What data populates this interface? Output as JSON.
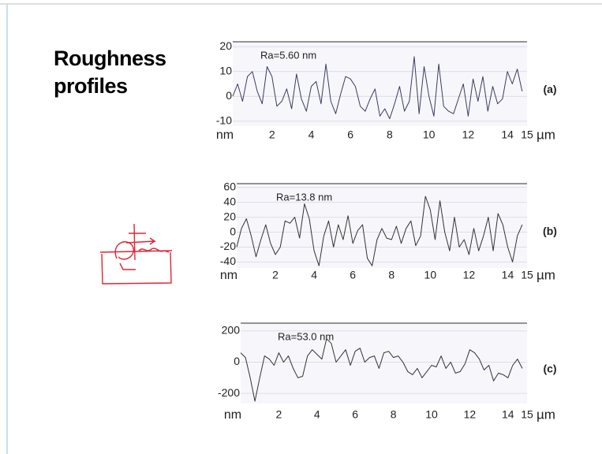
{
  "title": "Roughness profiles",
  "chart_data": [
    {
      "type": "line",
      "annotation": "Ra=5.60 nm",
      "panel_label": "(a)",
      "xlabel": "µm",
      "ylabel": "nm",
      "xlim": [
        0,
        15
      ],
      "xticks": [
        2,
        4,
        6,
        8,
        10,
        12,
        14,
        15
      ],
      "ylim": [
        -12,
        22
      ],
      "yticks": [
        -10,
        0,
        10,
        20
      ],
      "grid": true,
      "series": [
        {
          "color": "#3b3b63",
          "x": [
            0,
            0.25,
            0.5,
            0.75,
            1,
            1.25,
            1.5,
            1.75,
            2,
            2.25,
            2.5,
            2.75,
            3,
            3.25,
            3.5,
            3.75,
            4,
            4.25,
            4.5,
            4.75,
            5,
            5.25,
            5.5,
            5.75,
            6,
            6.25,
            6.5,
            6.75,
            7,
            7.25,
            7.5,
            7.75,
            8,
            8.25,
            8.5,
            8.75,
            9,
            9.25,
            9.5,
            9.75,
            10,
            10.25,
            10.5,
            10.75,
            11,
            11.25,
            11.5,
            11.75,
            12,
            12.25,
            12.5,
            12.75,
            13,
            13.25,
            13.5,
            13.75,
            14,
            14.25,
            14.5,
            14.75
          ],
          "values": [
            0,
            5,
            -2,
            8,
            10,
            2,
            -3,
            12,
            8,
            -4,
            -2,
            3,
            -5,
            9,
            -1,
            -6,
            4,
            6,
            -3,
            13,
            -2,
            -7,
            1,
            8,
            7,
            4,
            -4,
            -6,
            -1,
            3,
            -8,
            -5,
            -9,
            -3,
            4,
            -6,
            -2,
            16,
            -7,
            12,
            0,
            -8,
            13,
            -4,
            -6,
            -7,
            -1,
            5,
            -8,
            7,
            -2,
            8,
            -6,
            4,
            -3,
            -1,
            10,
            5,
            11,
            2
          ]
        }
      ]
    },
    {
      "type": "line",
      "annotation": "Ra=13.8 nm",
      "panel_label": "(b)",
      "xlabel": "µm",
      "ylabel": "nm",
      "xlim": [
        0,
        15
      ],
      "xticks": [
        2,
        4,
        6,
        8,
        10,
        12,
        14,
        15
      ],
      "ylim": [
        -48,
        65
      ],
      "yticks": [
        -40,
        -20,
        0,
        20,
        40,
        60
      ],
      "grid": true,
      "series": [
        {
          "color": "#333333",
          "x": [
            0,
            0.25,
            0.5,
            0.75,
            1,
            1.25,
            1.5,
            1.75,
            2,
            2.25,
            2.5,
            2.75,
            3,
            3.25,
            3.5,
            3.75,
            4,
            4.25,
            4.5,
            4.75,
            5,
            5.25,
            5.5,
            5.75,
            6,
            6.25,
            6.5,
            6.75,
            7,
            7.25,
            7.5,
            7.75,
            8,
            8.25,
            8.5,
            8.75,
            9,
            9.25,
            9.5,
            9.75,
            10,
            10.25,
            10.5,
            10.75,
            11,
            11.25,
            11.5,
            11.75,
            12,
            12.25,
            12.5,
            12.75,
            13,
            13.25,
            13.5,
            13.75,
            14,
            14.25,
            14.5,
            14.75
          ],
          "values": [
            -20,
            5,
            18,
            -5,
            -33,
            -10,
            10,
            -15,
            -30,
            -20,
            15,
            12,
            20,
            -8,
            38,
            18,
            -25,
            -45,
            -5,
            15,
            -20,
            10,
            -10,
            22,
            -15,
            2,
            10,
            -35,
            -45,
            -10,
            5,
            -8,
            -10,
            8,
            -15,
            5,
            15,
            -18,
            -5,
            48,
            30,
            -10,
            42,
            0,
            -25,
            20,
            -20,
            -10,
            -30,
            5,
            -25,
            -5,
            20,
            -25,
            25,
            10,
            -20,
            -40,
            -5,
            10
          ]
        }
      ]
    },
    {
      "type": "line",
      "annotation": "Ra=53.0 nm",
      "panel_label": "(c)",
      "xlabel": "µm",
      "ylabel": "nm",
      "xlim": [
        0,
        15
      ],
      "xticks": [
        2,
        4,
        6,
        8,
        10,
        12,
        14,
        15
      ],
      "ylim": [
        -265,
        250
      ],
      "yticks": [
        -200,
        0,
        200
      ],
      "grid": true,
      "series": [
        {
          "color": "#333333",
          "x": [
            0,
            0.25,
            0.5,
            0.75,
            1,
            1.25,
            1.5,
            1.75,
            2,
            2.25,
            2.5,
            2.75,
            3,
            3.25,
            3.5,
            3.75,
            4,
            4.25,
            4.5,
            4.75,
            5,
            5.25,
            5.5,
            5.75,
            6,
            6.25,
            6.5,
            6.75,
            7,
            7.25,
            7.5,
            7.75,
            8,
            8.25,
            8.5,
            8.75,
            9,
            9.25,
            9.5,
            9.75,
            10,
            10.25,
            10.5,
            10.75,
            11,
            11.25,
            11.5,
            11.75,
            12,
            12.25,
            12.5,
            12.75,
            13,
            13.25,
            13.5,
            13.75,
            14,
            14.25,
            14.5,
            14.75
          ],
          "values": [
            60,
            30,
            -100,
            -250,
            -100,
            40,
            20,
            -20,
            60,
            0,
            40,
            -40,
            -100,
            -90,
            40,
            80,
            50,
            20,
            150,
            120,
            0,
            40,
            80,
            -20,
            70,
            90,
            0,
            30,
            40,
            -40,
            60,
            70,
            30,
            40,
            0,
            -60,
            -80,
            -40,
            -100,
            -60,
            -20,
            -30,
            40,
            -40,
            0,
            -70,
            -60,
            -10,
            80,
            60,
            20,
            -50,
            -20,
            -120,
            -70,
            -80,
            -100,
            -20,
            20,
            -40
          ]
        }
      ]
    }
  ]
}
